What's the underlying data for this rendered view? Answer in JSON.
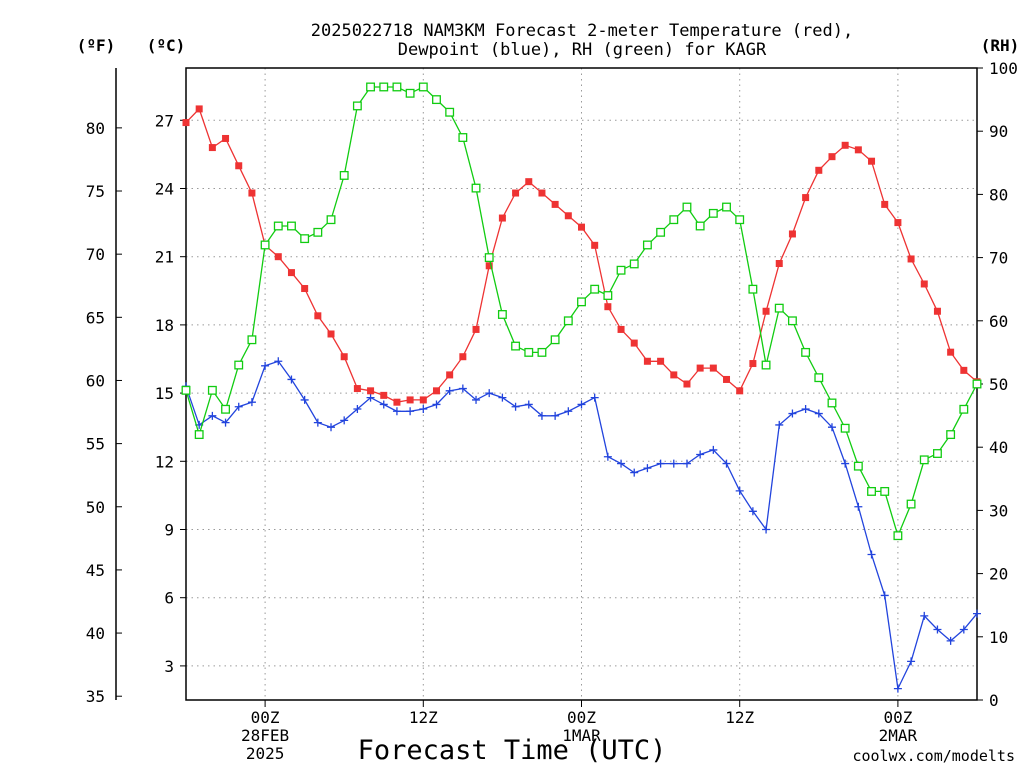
{
  "chart_data": {
    "type": "line",
    "title_line1": "2025022718 NAM3KM Forecast 2-meter Temperature (red),",
    "title_line2": "Dewpoint (blue), RH (green) for KAGR",
    "xlabel": "Forecast Time (UTC)",
    "credit": "coolwx.com/modelts",
    "unit_f": "(ºF)",
    "unit_c": "(ºC)",
    "unit_rh": "(RH)",
    "colors": {
      "temperature": "#ee3333",
      "dewpoint": "#2244dd",
      "rh": "#11cc11",
      "grid": "#9a9a9a"
    },
    "x_hours": [
      0,
      1,
      2,
      3,
      4,
      5,
      6,
      7,
      8,
      9,
      10,
      11,
      12,
      13,
      14,
      15,
      16,
      17,
      18,
      19,
      20,
      21,
      22,
      23,
      24,
      25,
      26,
      27,
      28,
      29,
      30,
      31,
      32,
      33,
      34,
      35,
      36,
      37,
      38,
      39,
      40,
      41,
      42,
      43,
      44,
      45,
      46,
      47,
      48,
      49,
      50,
      51,
      52,
      53,
      54,
      55,
      56,
      57,
      58,
      59,
      60
    ],
    "xlim": [
      0,
      60
    ],
    "x_ticks": [
      {
        "hour": 6,
        "lines": [
          "00Z",
          "28FEB",
          "2025"
        ]
      },
      {
        "hour": 18,
        "lines": [
          "12Z"
        ]
      },
      {
        "hour": 30,
        "lines": [
          "00Z",
          "1MAR"
        ]
      },
      {
        "hour": 42,
        "lines": [
          "12Z"
        ]
      },
      {
        "hour": 54,
        "lines": [
          "00Z",
          "2MAR"
        ]
      }
    ],
    "ylim_c": [
      1.5,
      29.3
    ],
    "ylim_rh": [
      0,
      100
    ],
    "celsius_ticks": [
      "3",
      "6",
      "9",
      "12",
      "15",
      "18",
      "21",
      "24",
      "27"
    ],
    "fahrenheit_ticks": [
      "35",
      "40",
      "45",
      "50",
      "55",
      "60",
      "65",
      "70",
      "75",
      "80"
    ],
    "rh_ticks": [
      "0",
      "10",
      "20",
      "30",
      "40",
      "50",
      "60",
      "70",
      "80",
      "90",
      "100"
    ],
    "grid": true,
    "series": [
      {
        "name": "Temperature",
        "values": [
          26.9,
          27.5,
          25.8,
          26.2,
          25.0,
          23.8,
          21.5,
          21.0,
          20.3,
          19.6,
          18.4,
          17.6,
          16.6,
          15.2,
          15.1,
          14.9,
          14.6,
          14.7,
          14.7,
          15.1,
          15.8,
          16.6,
          17.8,
          20.6,
          22.7,
          23.8,
          24.3,
          23.8,
          23.3,
          22.8,
          22.3,
          21.5,
          18.8,
          17.8,
          17.2,
          16.4,
          16.4,
          15.8,
          15.4,
          16.1,
          16.1,
          15.6,
          15.1,
          16.3,
          18.6,
          20.7,
          22.0,
          23.6,
          24.8,
          25.4,
          25.9,
          25.7,
          25.2,
          23.3,
          22.5,
          20.9,
          19.8,
          18.6,
          16.8,
          16.0,
          15.5
        ]
      },
      {
        "name": "Dewpoint",
        "values": [
          15.3,
          13.6,
          14.0,
          13.7,
          14.4,
          14.6,
          16.2,
          16.4,
          15.6,
          14.7,
          13.7,
          13.5,
          13.8,
          14.3,
          14.8,
          14.5,
          14.2,
          14.2,
          14.3,
          14.5,
          15.1,
          15.2,
          14.7,
          15.0,
          14.8,
          14.4,
          14.5,
          14.0,
          14.0,
          14.2,
          14.5,
          14.8,
          12.2,
          11.9,
          11.5,
          11.7,
          11.9,
          11.9,
          11.9,
          12.3,
          12.5,
          11.9,
          10.7,
          9.8,
          9.0,
          13.6,
          14.1,
          14.3,
          14.1,
          13.5,
          11.9,
          10.0,
          7.9,
          6.1,
          2.0,
          3.2,
          5.2,
          4.6,
          4.1,
          4.6,
          5.3
        ]
      },
      {
        "name": "RH",
        "values": [
          49,
          42,
          49,
          46,
          53,
          57,
          72,
          75,
          75,
          73,
          74,
          76,
          83,
          94,
          97,
          97,
          97,
          96,
          97,
          95,
          93,
          89,
          81,
          70,
          61,
          56,
          55,
          55,
          57,
          60,
          63,
          65,
          64,
          68,
          69,
          72,
          74,
          76,
          78,
          75,
          77,
          78,
          76,
          65,
          53,
          62,
          60,
          55,
          51,
          47,
          43,
          37,
          33,
          33,
          26,
          31,
          38,
          39,
          42,
          46,
          50
        ]
      }
    ]
  }
}
